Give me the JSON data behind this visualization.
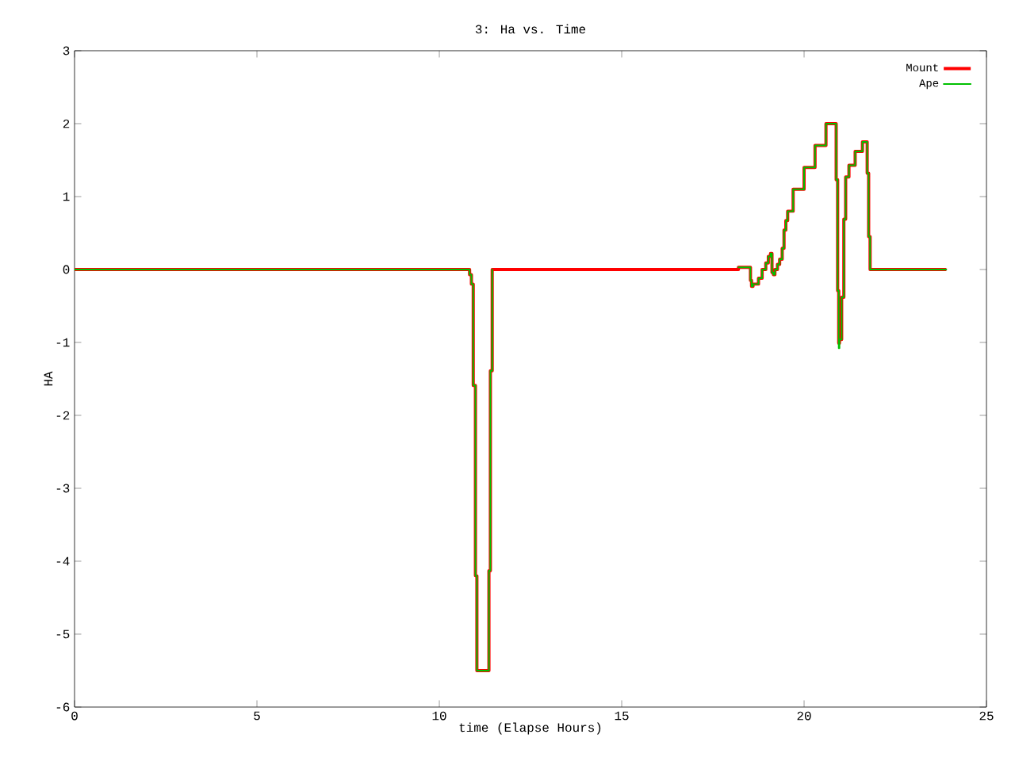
{
  "chart_data": {
    "type": "step",
    "title": "3: Ha vs. Time",
    "xlabel": "time (Elapse Hours)",
    "ylabel": "HA",
    "x": [
      0,
      10.83,
      10.88,
      10.93,
      10.99,
      11.03,
      11.36,
      11.4,
      11.45,
      15,
      18.2,
      18.53,
      18.56,
      18.6,
      18.75,
      18.85,
      18.95,
      19.02,
      19.08,
      19.12,
      19.16,
      19.2,
      19.27,
      19.33,
      19.4,
      19.45,
      19.5,
      19.55,
      19.7,
      20.0,
      20.3,
      20.6,
      20.88,
      20.92,
      20.95,
      20.97,
      21.03,
      21.09,
      21.14,
      21.23,
      21.4,
      21.6,
      21.73,
      21.77,
      21.81,
      21.86,
      23.9
    ],
    "series": [
      {
        "name": "Mount",
        "color": "#ff0000",
        "values": [
          0,
          -0.07,
          -0.2,
          -1.59,
          -4.2,
          -5.5,
          -4.13,
          -1.39,
          0,
          0,
          0.03,
          -0.15,
          -0.23,
          -0.2,
          -0.12,
          0,
          0.09,
          0.18,
          0.22,
          -0.04,
          -0.07,
          0,
          0.07,
          0.14,
          0.29,
          0.54,
          0.67,
          0.8,
          1.1,
          1.4,
          1.7,
          2.0,
          1.23,
          -0.29,
          -1.01,
          -0.96,
          -0.38,
          0.69,
          1.27,
          1.43,
          1.62,
          1.75,
          1.32,
          0.45,
          0,
          0,
          0
        ]
      },
      {
        "name": "Ape",
        "color": "#00c000",
        "values": [
          0,
          -0.07,
          -0.2,
          -1.59,
          -4.2,
          -5.5,
          -4.13,
          -1.39,
          0,
          null,
          0.03,
          -0.15,
          -0.23,
          -0.2,
          -0.12,
          0,
          0.09,
          0.18,
          0.22,
          -0.04,
          -0.07,
          0,
          0.07,
          0.14,
          0.29,
          0.54,
          0.67,
          0.8,
          1.1,
          1.4,
          1.7,
          2.0,
          1.23,
          -0.29,
          -1.08,
          -0.96,
          -0.38,
          0.69,
          1.27,
          1.43,
          1.62,
          1.75,
          1.32,
          0.45,
          0,
          0,
          0
        ]
      }
    ],
    "xlim": [
      0,
      25
    ],
    "ylim": [
      -6,
      3
    ],
    "xticks": [
      0,
      5,
      10,
      15,
      20,
      25
    ],
    "yticks": [
      -6,
      -5,
      -4,
      -3,
      -2,
      -1,
      0,
      1,
      2,
      3
    ],
    "legend": "top right",
    "grid": false,
    "marker": "none",
    "line_style": "solid"
  }
}
